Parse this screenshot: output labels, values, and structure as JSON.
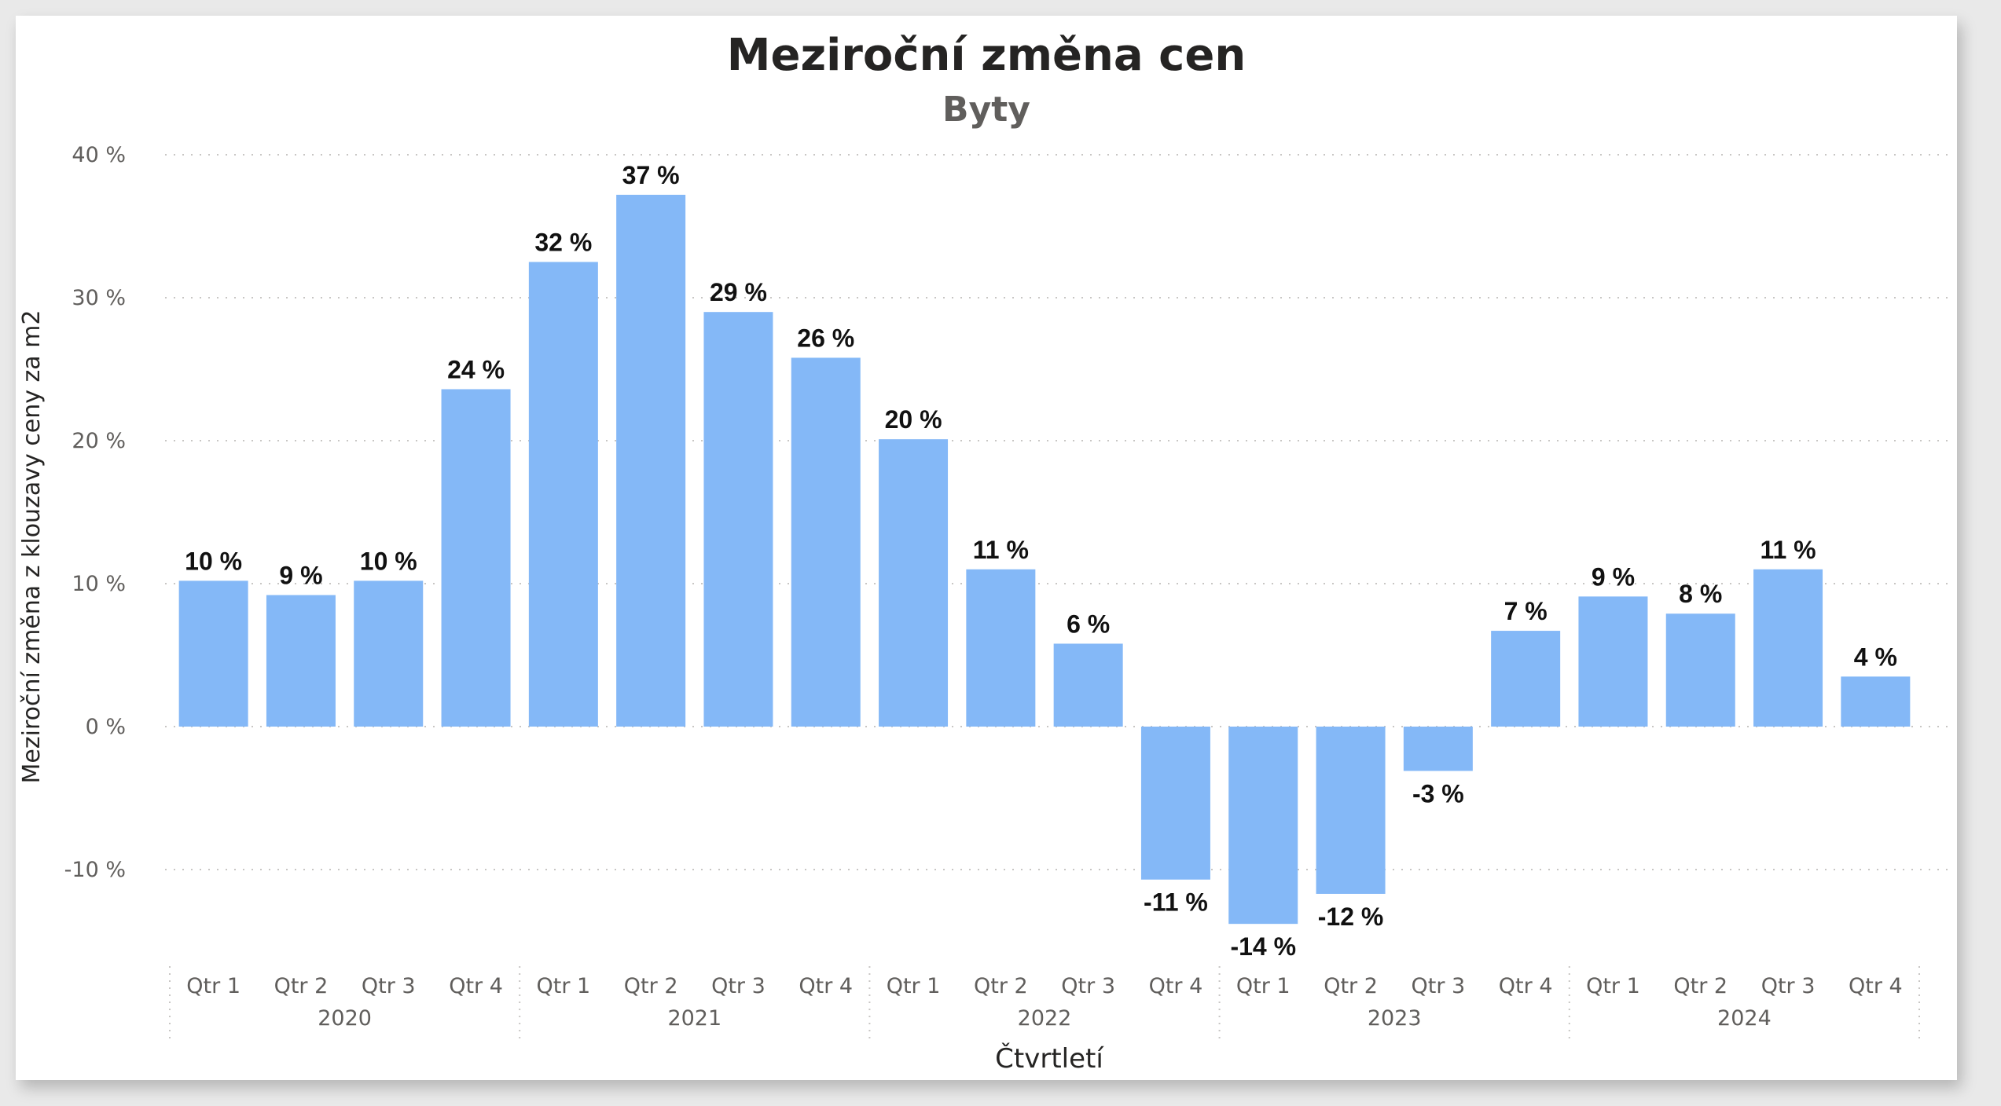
{
  "chart_data": {
    "type": "bar",
    "title": "Meziroční změna cen",
    "subtitle": "Byty",
    "xlabel": "Čtvrtletí",
    "ylabel": "Meziroční změna z klouzavy ceny za m2",
    "ylim": [
      -15,
      40
    ],
    "y_ticks": [
      40,
      30,
      20,
      10,
      0,
      -10
    ],
    "y_tick_labels": [
      "40 %",
      "30 %",
      "20 %",
      "10 %",
      "0 %",
      "-10 %"
    ],
    "grid": true,
    "bar_color": "#84b8f7",
    "years": [
      "2020",
      "2021",
      "2022",
      "2023",
      "2024"
    ],
    "categories": [
      "Qtr 1",
      "Qtr 2",
      "Qtr 3",
      "Qtr 4",
      "Qtr 1",
      "Qtr 2",
      "Qtr 3",
      "Qtr 4",
      "Qtr 1",
      "Qtr 2",
      "Qtr 3",
      "Qtr 4",
      "Qtr 1",
      "Qtr 2",
      "Qtr 3",
      "Qtr 4",
      "Qtr 1",
      "Qtr 2",
      "Qtr 3",
      "Qtr 4"
    ],
    "values": [
      10.2,
      9.2,
      10.2,
      23.6,
      32.5,
      37.2,
      29.0,
      25.8,
      20.1,
      11.0,
      5.8,
      -10.7,
      -13.8,
      -11.7,
      -3.1,
      6.7,
      9.1,
      7.9,
      11.0,
      3.5
    ],
    "data_labels": [
      "10 %",
      "9 %",
      "10 %",
      "24 %",
      "32 %",
      "37 %",
      "29 %",
      "26 %",
      "20 %",
      "11 %",
      "6 %",
      "-11 %",
      "-14 %",
      "-12 %",
      "-3 %",
      "7 %",
      "9 %",
      "8 %",
      "11 %",
      "4 %"
    ]
  }
}
